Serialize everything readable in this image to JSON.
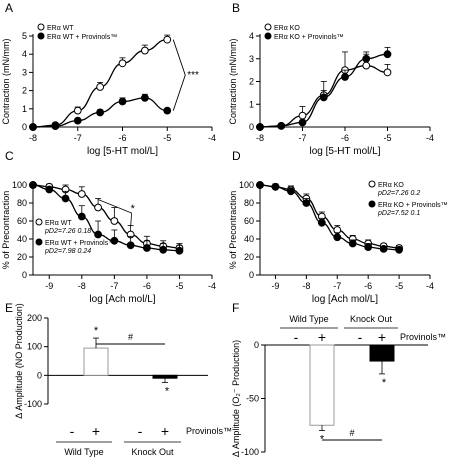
{
  "chart_data": [
    {
      "panel": "A",
      "type": "line",
      "xlabel": "log [5-HT mol/L]",
      "ylabel": "Contraction (mN/mm)",
      "xlim": [
        -8,
        -4
      ],
      "ylim": [
        0,
        5
      ],
      "xticks": [
        "-8",
        "-7",
        "-6",
        "-5",
        "-4"
      ],
      "yticks": [
        "0",
        "1",
        "2",
        "3",
        "4",
        "5"
      ],
      "legend": "top-left",
      "series": [
        {
          "name": "ERα WT",
          "marker": "open",
          "x": [
            -8,
            -7.5,
            -7,
            -6.5,
            -6,
            -5.5,
            -5
          ],
          "y": [
            0.0,
            0.1,
            0.9,
            2.2,
            3.5,
            4.2,
            4.8
          ],
          "err": [
            0,
            0.05,
            0.2,
            0.25,
            0.3,
            0.3,
            0.25
          ]
        },
        {
          "name": "ERα WT + Provinols™",
          "marker": "filled",
          "x": [
            -8,
            -7.5,
            -7,
            -6.5,
            -6,
            -5.5,
            -5
          ],
          "y": [
            0.0,
            0.05,
            0.35,
            0.8,
            1.4,
            1.6,
            0.9
          ],
          "err": [
            0,
            0.05,
            0.1,
            0.15,
            0.2,
            0.2,
            0.1
          ]
        }
      ],
      "annotations": [
        "***"
      ]
    },
    {
      "panel": "B",
      "type": "line",
      "xlabel": "log [5-HT mol/L]",
      "ylabel": "Contraction (mN/mm)",
      "xlim": [
        -8,
        -4
      ],
      "ylim": [
        0,
        4
      ],
      "xticks": [
        "-8",
        "-7",
        "-6",
        "-5",
        "-4"
      ],
      "yticks": [
        "0",
        "1",
        "2",
        "3",
        "4"
      ],
      "legend": "top-left",
      "series": [
        {
          "name": "ERα KO",
          "marker": "open",
          "x": [
            -8,
            -7.5,
            -7,
            -6.5,
            -6,
            -5.5,
            -5
          ],
          "y": [
            0.0,
            0.05,
            0.5,
            1.4,
            2.5,
            2.7,
            2.4
          ],
          "err": [
            0,
            0.05,
            0.4,
            0.6,
            0.8,
            0.5,
            0.35
          ]
        },
        {
          "name": "ERα KO + Provinols™",
          "marker": "filled",
          "x": [
            -8,
            -7.5,
            -7,
            -6.5,
            -6,
            -5.5,
            -5
          ],
          "y": [
            0.0,
            0.05,
            0.2,
            1.3,
            2.2,
            3.0,
            3.2
          ],
          "err": [
            0,
            0.05,
            0.1,
            0.3,
            0.3,
            0.3,
            0.3
          ]
        }
      ]
    },
    {
      "panel": "C",
      "type": "line",
      "xlabel": "log [Ach mol/L]",
      "ylabel": "% of Precontraction",
      "xlim": [
        -9.5,
        -4
      ],
      "ylim": [
        0,
        100
      ],
      "xticks": [
        "-9",
        "-8",
        "-7",
        "-6",
        "-5",
        "-4"
      ],
      "yticks": [
        "0",
        "20",
        "40",
        "60",
        "80",
        "100"
      ],
      "legend": "bottom-left",
      "series": [
        {
          "name": "ERα WT",
          "stats": "pD2=7.26  0.18",
          "marker": "open",
          "x": [
            -9.5,
            -9,
            -8.5,
            -8,
            -7.5,
            -7,
            -6.5,
            -6,
            -5.5,
            -5
          ],
          "y": [
            100,
            98,
            95,
            90,
            75,
            60,
            45,
            35,
            32,
            30
          ],
          "err": [
            0,
            3,
            5,
            8,
            10,
            15,
            10,
            8,
            6,
            5
          ]
        },
        {
          "name": "ERα WT + Provinols™",
          "stats": "pD2=7.98  0.24",
          "marker": "filled",
          "x": [
            -9.5,
            -9,
            -8.5,
            -8,
            -7.5,
            -7,
            -6.5,
            -6,
            -5.5,
            -5
          ],
          "y": [
            100,
            95,
            85,
            65,
            45,
            38,
            33,
            30,
            28,
            27
          ],
          "err": [
            0,
            3,
            8,
            12,
            15,
            12,
            10,
            8,
            7,
            6
          ]
        }
      ],
      "annotations": [
        "*"
      ]
    },
    {
      "panel": "D",
      "type": "line",
      "xlabel": "log [Ach mol/L]",
      "ylabel": "% of Precontraction",
      "xlim": [
        -9.5,
        -4
      ],
      "ylim": [
        0,
        100
      ],
      "xticks": [
        "-9",
        "-8",
        "-7",
        "-6",
        "-5",
        "-4"
      ],
      "yticks": [
        "0",
        "20",
        "40",
        "60",
        "80",
        "100"
      ],
      "legend": "top-right",
      "series": [
        {
          "name": "ERα KO",
          "stats": "pD2=7.26  0.2",
          "marker": "open",
          "x": [
            -9.5,
            -9,
            -8.5,
            -8,
            -7.5,
            -7,
            -6.5,
            -6,
            -5.5,
            -5
          ],
          "y": [
            100,
            98,
            95,
            85,
            65,
            50,
            40,
            35,
            32,
            30
          ],
          "err": [
            0,
            3,
            4,
            5,
            5,
            5,
            4,
            4,
            3,
            3
          ]
        },
        {
          "name": "ERα KO + Provinols™",
          "stats": "pD2=7.52  0.1",
          "marker": "filled",
          "x": [
            -9.5,
            -9,
            -8.5,
            -8,
            -7.5,
            -7,
            -6.5,
            -6,
            -5.5,
            -5
          ],
          "y": [
            100,
            98,
            93,
            80,
            58,
            42,
            35,
            31,
            29,
            28
          ],
          "err": [
            0,
            3,
            4,
            5,
            5,
            5,
            4,
            4,
            3,
            3
          ]
        }
      ]
    },
    {
      "panel": "E",
      "type": "bar",
      "ylabel": "Δ Amplitude (NO Production)",
      "ylim": [
        -100,
        200
      ],
      "yticks": [
        "-100",
        "0",
        "100",
        "200"
      ],
      "groups": [
        "Wild Type",
        "Knock Out"
      ],
      "treatment_label": "Provinols™",
      "bar_signs": [
        "-",
        "+",
        "-",
        "+"
      ],
      "values": [
        0,
        95,
        0,
        -10
      ],
      "errors": [
        0,
        35,
        0,
        15
      ],
      "significance": [
        "*",
        "*",
        "#"
      ]
    },
    {
      "panel": "F",
      "type": "bar",
      "ylabel": "Δ Amplitude (O₂⁻ Production)",
      "ylim": [
        -100,
        0
      ],
      "yticks": [
        "0",
        "-50",
        "-100"
      ],
      "groups": [
        "Wild Type",
        "Knock Out"
      ],
      "treatment_label": "Provinols™",
      "bar_signs": [
        "-",
        "+",
        "-",
        "+"
      ],
      "values": [
        0,
        -75,
        0,
        -15
      ],
      "errors": [
        0,
        5,
        0,
        12
      ],
      "significance": [
        "*",
        "*",
        "#"
      ]
    }
  ]
}
